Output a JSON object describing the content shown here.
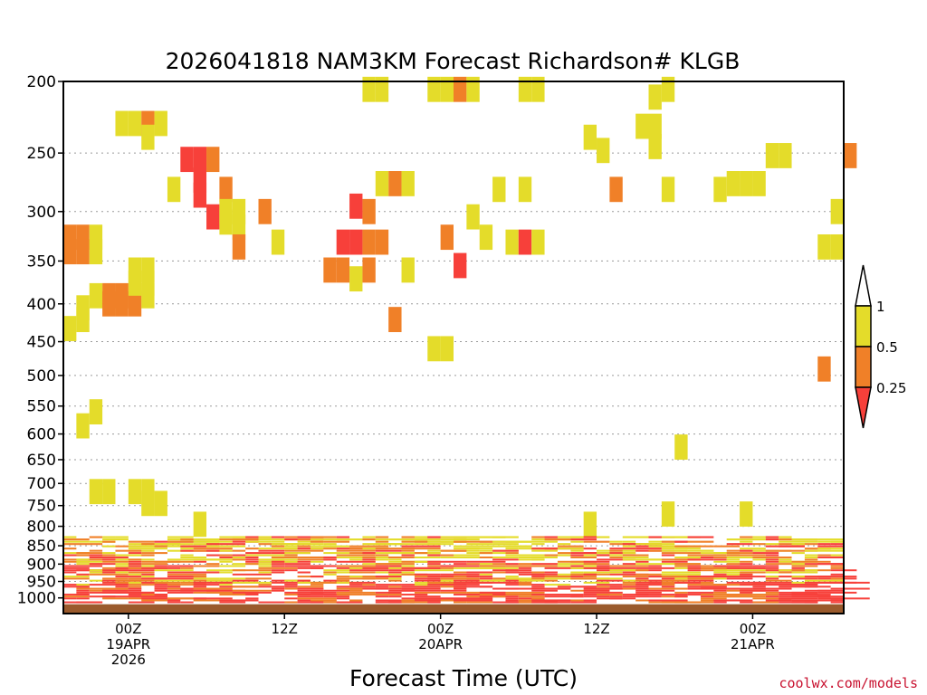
{
  "chart_data": {
    "type": "heatmap",
    "title": "2026041818 NAM3KM Forecast Richardson# KLGB",
    "xlabel": "Forecast Time (UTC)",
    "ylabel": "",
    "credit": "coolwx.com/models",
    "x_range_hours": [
      -5,
      55
    ],
    "y_range_hpa": [
      200,
      1050
    ],
    "y_scale": "log",
    "grid": true,
    "legend_placement": "right",
    "y_ticks": [
      200,
      250,
      300,
      350,
      400,
      450,
      500,
      550,
      600,
      650,
      700,
      750,
      800,
      850,
      900,
      950,
      1000
    ],
    "x_ticks": [
      {
        "hour": 0,
        "lines": [
          "00Z",
          "19APR",
          "2026"
        ]
      },
      {
        "hour": 12,
        "lines": [
          "12Z"
        ]
      },
      {
        "hour": 24,
        "lines": [
          "00Z",
          "20APR"
        ]
      },
      {
        "hour": 36,
        "lines": [
          "12Z"
        ]
      },
      {
        "hour": 48,
        "lines": [
          "00Z",
          "21APR"
        ]
      }
    ],
    "legend": {
      "top_label": "1",
      "bins": [
        {
          "label": "0.5",
          "color": "#e4dc2a"
        },
        {
          "label": "0.25",
          "color": "#f08028"
        }
      ],
      "bottom_color": "#f7403a",
      "top_color": "#ffffff"
    },
    "colors": {
      "lt_025": "#f7403a",
      "lt_05": "#f08028",
      "lt_1": "#e4dc2a",
      "ground": "#9a5a2c"
    },
    "ground_hpa": 1020,
    "cells": [
      {
        "h": -5,
        "p": 325,
        "c": "lt_05"
      },
      {
        "h": -4,
        "p": 325,
        "c": "lt_05"
      },
      {
        "h": -3,
        "p": 325,
        "c": "lt_1"
      },
      {
        "h": -5,
        "p": 340,
        "c": "lt_05"
      },
      {
        "h": -4,
        "p": 340,
        "c": "lt_05"
      },
      {
        "h": -3,
        "p": 340,
        "c": "lt_1"
      },
      {
        "h": -2,
        "p": 390,
        "c": "lt_05"
      },
      {
        "h": -1,
        "p": 390,
        "c": "lt_05"
      },
      {
        "h": 0,
        "p": 390,
        "c": "lt_05"
      },
      {
        "h": -3,
        "p": 390,
        "c": "lt_1"
      },
      {
        "h": -2,
        "p": 400,
        "c": "lt_05"
      },
      {
        "h": -1,
        "p": 400,
        "c": "lt_05"
      },
      {
        "h": 0,
        "p": 400,
        "c": "lt_05"
      },
      {
        "h": -4,
        "p": 405,
        "c": "lt_1"
      },
      {
        "h": 0,
        "p": 360,
        "c": "lt_1"
      },
      {
        "h": 1,
        "p": 360,
        "c": "lt_1"
      },
      {
        "h": 0,
        "p": 375,
        "c": "lt_1"
      },
      {
        "h": 1,
        "p": 375,
        "c": "lt_1"
      },
      {
        "h": 1,
        "p": 390,
        "c": "lt_1"
      },
      {
        "h": -4,
        "p": 420,
        "c": "lt_1"
      },
      {
        "h": -5,
        "p": 432,
        "c": "lt_1"
      },
      {
        "h": -4,
        "p": 585,
        "c": "lt_1"
      },
      {
        "h": -3,
        "p": 560,
        "c": "lt_1"
      },
      {
        "h": -3,
        "p": 718,
        "c": "lt_1"
      },
      {
        "h": -2,
        "p": 718,
        "c": "lt_1"
      },
      {
        "h": 0,
        "p": 718,
        "c": "lt_1"
      },
      {
        "h": 1,
        "p": 718,
        "c": "lt_1"
      },
      {
        "h": 1,
        "p": 745,
        "c": "lt_1"
      },
      {
        "h": 2,
        "p": 745,
        "c": "lt_1"
      },
      {
        "h": -1,
        "p": 228,
        "c": "lt_1"
      },
      {
        "h": 0,
        "p": 228,
        "c": "lt_1"
      },
      {
        "h": 1,
        "p": 228,
        "c": "lt_05"
      },
      {
        "h": 2,
        "p": 228,
        "c": "lt_1"
      },
      {
        "h": 1,
        "p": 238,
        "c": "lt_1"
      },
      {
        "h": 4,
        "p": 255,
        "c": "lt_025"
      },
      {
        "h": 5,
        "p": 255,
        "c": "lt_025"
      },
      {
        "h": 6,
        "p": 255,
        "c": "lt_05"
      },
      {
        "h": 5,
        "p": 272,
        "c": "lt_025"
      },
      {
        "h": 5,
        "p": 285,
        "c": "lt_025"
      },
      {
        "h": 3,
        "p": 280,
        "c": "lt_1"
      },
      {
        "h": 7,
        "p": 280,
        "c": "lt_05"
      },
      {
        "h": 6,
        "p": 305,
        "c": "lt_025"
      },
      {
        "h": 7,
        "p": 300,
        "c": "lt_1"
      },
      {
        "h": 8,
        "p": 300,
        "c": "lt_1"
      },
      {
        "h": 7,
        "p": 310,
        "c": "lt_1"
      },
      {
        "h": 8,
        "p": 315,
        "c": "lt_1"
      },
      {
        "h": 8,
        "p": 335,
        "c": "lt_05"
      },
      {
        "h": 10,
        "p": 300,
        "c": "lt_05"
      },
      {
        "h": 11,
        "p": 330,
        "c": "lt_1"
      },
      {
        "h": 17,
        "p": 295,
        "c": "lt_025"
      },
      {
        "h": 18,
        "p": 300,
        "c": "lt_05"
      },
      {
        "h": 16,
        "p": 330,
        "c": "lt_025"
      },
      {
        "h": 17,
        "p": 330,
        "c": "lt_025"
      },
      {
        "h": 18,
        "p": 330,
        "c": "lt_05"
      },
      {
        "h": 19,
        "p": 330,
        "c": "lt_05"
      },
      {
        "h": 15,
        "p": 360,
        "c": "lt_05"
      },
      {
        "h": 16,
        "p": 360,
        "c": "lt_05"
      },
      {
        "h": 17,
        "p": 370,
        "c": "lt_1"
      },
      {
        "h": 18,
        "p": 360,
        "c": "lt_05"
      },
      {
        "h": 20,
        "p": 275,
        "c": "lt_05"
      },
      {
        "h": 19,
        "p": 275,
        "c": "lt_1"
      },
      {
        "h": 21,
        "p": 275,
        "c": "lt_1"
      },
      {
        "h": 20,
        "p": 420,
        "c": "lt_05"
      },
      {
        "h": 21,
        "p": 360,
        "c": "lt_1"
      },
      {
        "h": 24,
        "p": 325,
        "c": "lt_05"
      },
      {
        "h": 26,
        "p": 305,
        "c": "lt_1"
      },
      {
        "h": 27,
        "p": 325,
        "c": "lt_1"
      },
      {
        "h": 25,
        "p": 355,
        "c": "lt_025"
      },
      {
        "h": 23,
        "p": 460,
        "c": "lt_1"
      },
      {
        "h": 24,
        "p": 460,
        "c": "lt_1"
      },
      {
        "h": 18,
        "p": 205,
        "c": "lt_1"
      },
      {
        "h": 19,
        "p": 205,
        "c": "lt_1"
      },
      {
        "h": 23,
        "p": 205,
        "c": "lt_1"
      },
      {
        "h": 24,
        "p": 205,
        "c": "lt_1"
      },
      {
        "h": 25,
        "p": 205,
        "c": "lt_05"
      },
      {
        "h": 26,
        "p": 205,
        "c": "lt_1"
      },
      {
        "h": 30,
        "p": 205,
        "c": "lt_1"
      },
      {
        "h": 31,
        "p": 205,
        "c": "lt_1"
      },
      {
        "h": 28,
        "p": 280,
        "c": "lt_1"
      },
      {
        "h": 30,
        "p": 280,
        "c": "lt_1"
      },
      {
        "h": 29,
        "p": 330,
        "c": "lt_1"
      },
      {
        "h": 30,
        "p": 330,
        "c": "lt_025"
      },
      {
        "h": 31,
        "p": 330,
        "c": "lt_1"
      },
      {
        "h": 35,
        "p": 238,
        "c": "lt_1"
      },
      {
        "h": 36,
        "p": 248,
        "c": "lt_1"
      },
      {
        "h": 37,
        "p": 280,
        "c": "lt_05"
      },
      {
        "h": 39,
        "p": 230,
        "c": "lt_1"
      },
      {
        "h": 40,
        "p": 230,
        "c": "lt_1"
      },
      {
        "h": 40,
        "p": 245,
        "c": "lt_1"
      },
      {
        "h": 41,
        "p": 280,
        "c": "lt_1"
      },
      {
        "h": 40,
        "p": 210,
        "c": "lt_1"
      },
      {
        "h": 41,
        "p": 205,
        "c": "lt_1"
      },
      {
        "h": 45,
        "p": 280,
        "c": "lt_1"
      },
      {
        "h": 46,
        "p": 275,
        "c": "lt_1"
      },
      {
        "h": 47,
        "p": 275,
        "c": "lt_1"
      },
      {
        "h": 48,
        "p": 275,
        "c": "lt_1"
      },
      {
        "h": 49,
        "p": 252,
        "c": "lt_1"
      },
      {
        "h": 50,
        "p": 252,
        "c": "lt_1"
      },
      {
        "h": 55,
        "p": 252,
        "c": "lt_05"
      },
      {
        "h": 53,
        "p": 335,
        "c": "lt_1"
      },
      {
        "h": 54,
        "p": 335,
        "c": "lt_1"
      },
      {
        "h": 54,
        "p": 300,
        "c": "lt_1"
      },
      {
        "h": 53,
        "p": 490,
        "c": "lt_05"
      },
      {
        "h": 42,
        "p": 625,
        "c": "lt_1"
      },
      {
        "h": 41,
        "p": 770,
        "c": "lt_1"
      },
      {
        "h": 47,
        "p": 770,
        "c": "lt_1"
      },
      {
        "h": 5,
        "p": 795,
        "c": "lt_1"
      },
      {
        "h": 35,
        "p": 795,
        "c": "lt_1"
      }
    ],
    "pbl_band_hpa": [
      825,
      1015
    ],
    "pbl_density_pct": 55
  }
}
